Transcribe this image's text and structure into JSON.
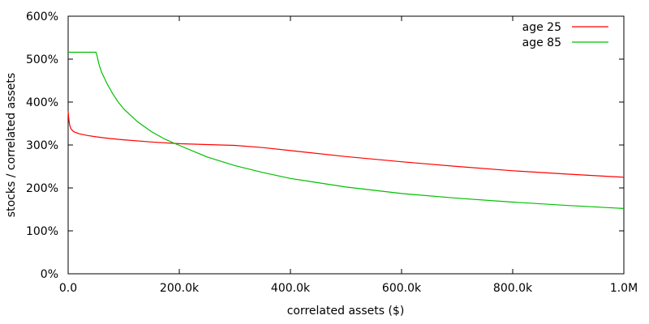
{
  "chart_data": {
    "type": "line",
    "title": "",
    "xlabel": "correlated assets ($)",
    "ylabel": "stocks / correlated assets",
    "xlim": [
      0,
      1000000
    ],
    "ylim": [
      0,
      600
    ],
    "grid": false,
    "legend_position": "top-right",
    "x_ticks": [
      {
        "value": 0,
        "label": "0.0"
      },
      {
        "value": 200000,
        "label": "200.0k"
      },
      {
        "value": 400000,
        "label": "400.0k"
      },
      {
        "value": 600000,
        "label": "600.0k"
      },
      {
        "value": 800000,
        "label": "800.0k"
      },
      {
        "value": 1000000,
        "label": "1.0M"
      }
    ],
    "y_ticks": [
      {
        "value": 0,
        "label": "0%"
      },
      {
        "value": 100,
        "label": "100%"
      },
      {
        "value": 200,
        "label": "200%"
      },
      {
        "value": 300,
        "label": "300%"
      },
      {
        "value": 400,
        "label": "400%"
      },
      {
        "value": 500,
        "label": "500%"
      },
      {
        "value": 600,
        "label": "600%"
      }
    ],
    "series": [
      {
        "name": "age 25",
        "color": "#ff0000",
        "x": [
          0,
          1000,
          2500,
          5000,
          10000,
          20000,
          35000,
          50000,
          75000,
          100000,
          150000,
          200000,
          250000,
          300000,
          350000,
          400000,
          500000,
          600000,
          700000,
          800000,
          900000,
          1000000
        ],
        "y": [
          379,
          362,
          348,
          338,
          331,
          326,
          322,
          319,
          315,
          312,
          307,
          303,
          301,
          299,
          294,
          287,
          273,
          261,
          250,
          240,
          232,
          225
        ]
      },
      {
        "name": "age 85",
        "color": "#00c000",
        "x": [
          0,
          50000,
          52000,
          55000,
          60000,
          70000,
          80000,
          90000,
          100000,
          125000,
          150000,
          175000,
          200000,
          250000,
          300000,
          350000,
          400000,
          500000,
          600000,
          700000,
          800000,
          900000,
          1000000
        ],
        "y": [
          516,
          516,
          508,
          490,
          470,
          443,
          420,
          400,
          384,
          354,
          331,
          313,
          299,
          272,
          252,
          236,
          222,
          202,
          187,
          176,
          167,
          159,
          152
        ]
      }
    ]
  }
}
